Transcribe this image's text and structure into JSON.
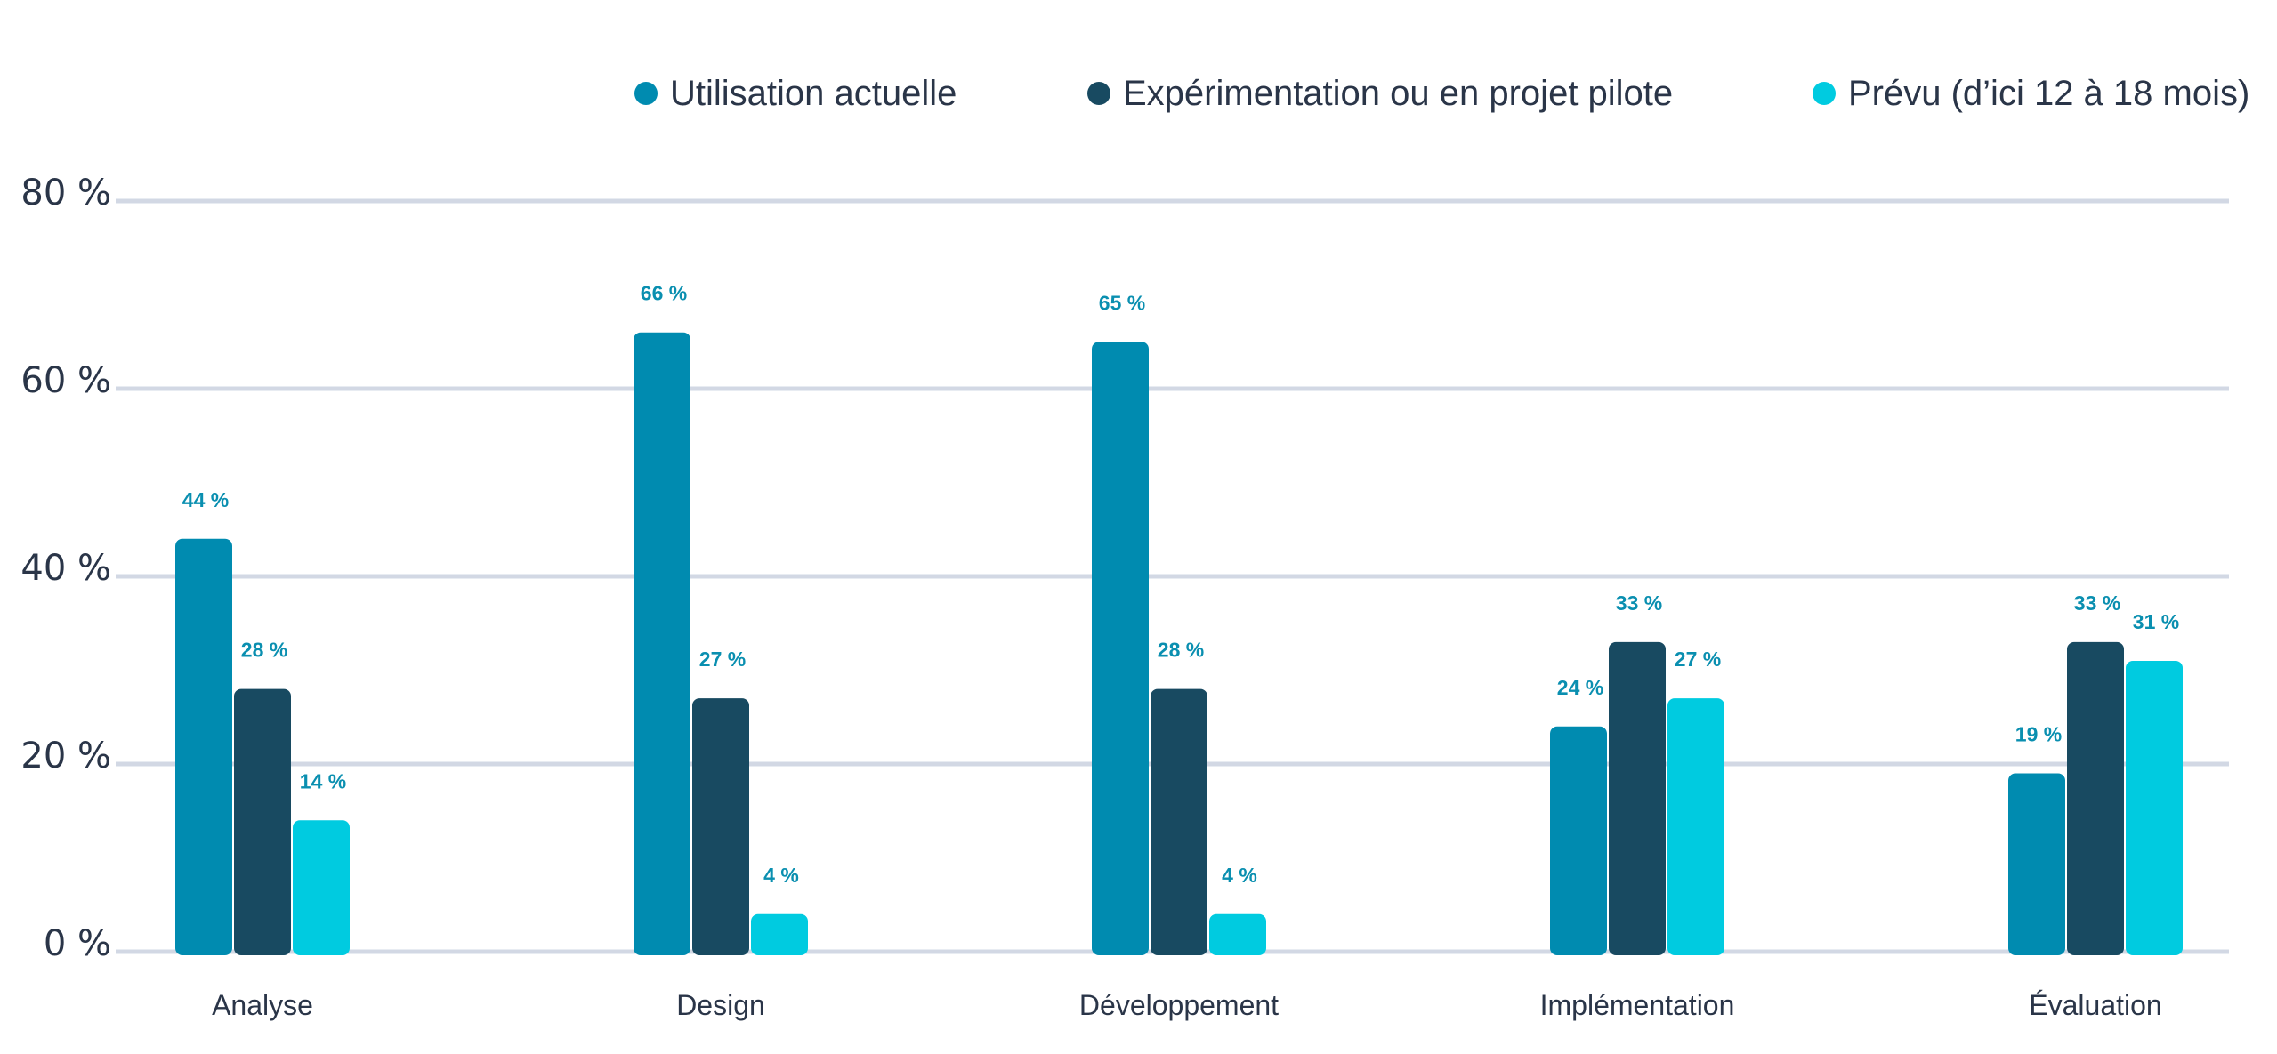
{
  "chart_data": {
    "type": "bar",
    "title": "",
    "xlabel": "",
    "ylabel": "",
    "ylim": [
      0,
      80
    ],
    "yticks": [
      0,
      20,
      40,
      60,
      80
    ],
    "ytick_labels": [
      "0 %",
      "20 %",
      "40 %",
      "60 %",
      "80 %"
    ],
    "grid": true,
    "legend_position": "top",
    "categories": [
      "Analyse",
      "Design",
      "Développement",
      "Implémentation",
      "Évaluation"
    ],
    "series": [
      {
        "name": "Utilisation actuelle",
        "color": "#008bb0",
        "values": [
          44,
          66,
          65,
          24,
          19
        ],
        "labels": [
          "44 %",
          "66 %",
          "65 %",
          "24 %",
          "19 %"
        ]
      },
      {
        "name": "Expérimentation ou en projet pilote",
        "color": "#184a61",
        "values": [
          28,
          27,
          28,
          33,
          33
        ],
        "labels": [
          "28 %",
          "27 %",
          "28 %",
          "33 %",
          "33 %"
        ]
      },
      {
        "name": "Prévu (d’ici 12 à 18 mois)",
        "color": "#00cbe0",
        "values": [
          14,
          4,
          4,
          27,
          31
        ],
        "labels": [
          "14 %",
          "4 %",
          "4 %",
          "27 %",
          "31 %"
        ]
      }
    ]
  }
}
